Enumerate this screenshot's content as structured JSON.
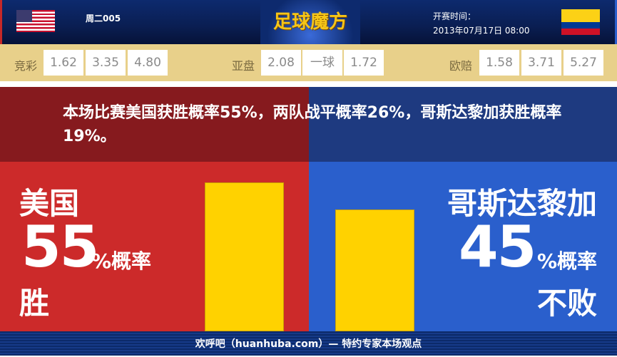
{
  "header": {
    "match_no": "周二005",
    "logo_text": "足球魔方",
    "kickoff_label": "开赛时间：",
    "kickoff_time": "2013年07月17日 08:00",
    "home_flag": "usa-flag",
    "away_flag": "colombia-flag"
  },
  "odds": {
    "jingcai": {
      "label": "竞彩",
      "values": [
        "1.62",
        "3.35",
        "4.80"
      ]
    },
    "yapan": {
      "label": "亚盘",
      "values": [
        "2.08",
        "一球",
        "1.72"
      ]
    },
    "oupei": {
      "label": "欧赔",
      "values": [
        "1.58",
        "3.71",
        "5.27"
      ]
    }
  },
  "summary": "本场比赛美国获胜概率55%，两队战平概率26%，哥斯达黎加获胜概率19%。",
  "home": {
    "name": "美国",
    "percent": "55",
    "unit": "%概率",
    "outcome": "胜",
    "bar_value": 55
  },
  "away": {
    "name": "哥斯达黎加",
    "percent": "45",
    "unit": "%概率",
    "outcome": "不败",
    "bar_value": 45
  },
  "colors": {
    "home": "#cc2a2a",
    "away": "#2a5fcc",
    "bar": "#ffd200",
    "odds_bg": "#e8d08a"
  },
  "footer": "欢呼吧（huanhuba.com）— 特约专家本场观点"
}
